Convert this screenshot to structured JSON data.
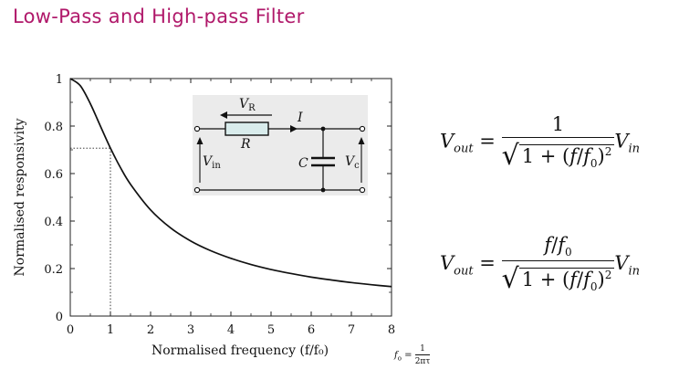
{
  "title": "Low-Pass and High-pass Filter",
  "chart_data": {
    "type": "line",
    "xlabel": "Normalised frequency (f/f₀)",
    "ylabel": "Normalised responsivity",
    "xlim": [
      0,
      8
    ],
    "ylim": [
      0,
      1
    ],
    "xticks": [
      "0",
      "1",
      "2",
      "3",
      "4",
      "5",
      "6",
      "7",
      "8"
    ],
    "yticks": [
      "0",
      "0.2",
      "0.4",
      "0.6",
      "0.8",
      "1"
    ],
    "grid": false,
    "series": [
      {
        "x": [
          0,
          0.25,
          0.5,
          0.75,
          1,
          1.25,
          1.5,
          2,
          2.5,
          3,
          3.5,
          4,
          4.5,
          5,
          5.5,
          6,
          6.5,
          7,
          7.5,
          8
        ],
        "y": [
          1,
          0.97,
          0.894,
          0.8,
          0.707,
          0.625,
          0.555,
          0.447,
          0.371,
          0.316,
          0.275,
          0.243,
          0.217,
          0.196,
          0.179,
          0.164,
          0.152,
          0.141,
          0.132,
          0.124
        ]
      }
    ],
    "annotations": [
      {
        "type": "dotted-guide",
        "x": 1,
        "y": 0.707
      }
    ]
  },
  "circuit": {
    "vr_label": "V",
    "vr_sub": "R",
    "r_label": "R",
    "i_label": "I",
    "c_label": "C",
    "vin_label": "V",
    "vin_sub": "in",
    "vc_label": "V",
    "vc_sub": "c"
  },
  "equations": {
    "v": "V",
    "out": "out",
    "in": "in",
    "eq": "=",
    "one": "1",
    "f": "f",
    "slash": "/",
    "f0": "f",
    "zero": "0",
    "one_plus": "1 + (",
    "close_sq": ")",
    "two": "2"
  },
  "footnote": {
    "f": "f",
    "sub": "o",
    "eq": "=",
    "num": "1",
    "den": "2πτ"
  }
}
